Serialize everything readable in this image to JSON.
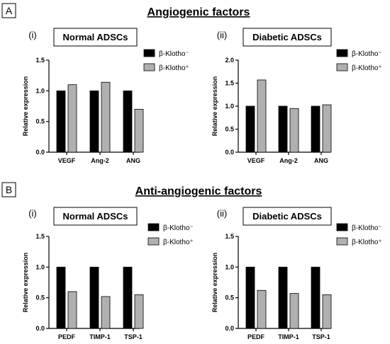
{
  "sections": [
    {
      "letter": "A",
      "title": "Angiogenic factors",
      "charts": [
        {
          "numeral": "(i)",
          "title": "Normal ADSCs",
          "chart_data": {
            "type": "bar",
            "title": "Normal ADSCs",
            "categories": [
              "VEGF",
              "Ang-2",
              "ANG"
            ],
            "ylabel": "Relative expression",
            "ylim": [
              0,
              1.5
            ],
            "yticks": [
              "0.0",
              "0.5",
              "1.0",
              "1.5"
            ],
            "series": [
              {
                "name": "β-Klotho⁻",
                "color": "#000000",
                "values": [
                  1.0,
                  1.0,
                  1.0
                ]
              },
              {
                "name": "β-Klotho⁺",
                "color": "#b0b0b0",
                "values": [
                  1.1,
                  1.14,
                  0.7
                ]
              }
            ],
            "legend": "top-right",
            "grid": false
          }
        },
        {
          "numeral": "(ii)",
          "title": "Diabetic ADSCs",
          "chart_data": {
            "type": "bar",
            "title": "Diabetic ADSCs",
            "categories": [
              "VEGF",
              "Ang-2",
              "ANG"
            ],
            "ylabel": "Relative expression",
            "ylim": [
              0,
              2.0
            ],
            "yticks": [
              "0.0",
              "0.5",
              "1.0",
              "1.5",
              "2.0"
            ],
            "series": [
              {
                "name": "β-Klotho⁻",
                "color": "#000000",
                "values": [
                  1.0,
                  1.0,
                  1.0
                ]
              },
              {
                "name": "β-Klotho⁺",
                "color": "#b0b0b0",
                "values": [
                  1.57,
                  0.95,
                  1.03
                ]
              }
            ],
            "legend": "top-right",
            "grid": false
          }
        }
      ]
    },
    {
      "letter": "B",
      "title": "Anti-angiogenic factors",
      "charts": [
        {
          "numeral": "(i)",
          "title": "Normal ADSCs",
          "chart_data": {
            "type": "bar",
            "title": "Normal ADSCs",
            "categories": [
              "PEDF",
              "TIMP-1",
              "TSP-1"
            ],
            "ylabel": "Relative expression",
            "ylim": [
              0,
              1.5
            ],
            "yticks": [
              "0.0",
              "0.5",
              "1.0",
              "1.5"
            ],
            "series": [
              {
                "name": "β-Klotho⁻",
                "color": "#000000",
                "values": [
                  1.0,
                  1.0,
                  1.0
                ]
              },
              {
                "name": "β-Klotho⁺",
                "color": "#b0b0b0",
                "values": [
                  0.6,
                  0.52,
                  0.55
                ]
              }
            ],
            "legend": "top-right",
            "grid": false
          }
        },
        {
          "numeral": "(ii)",
          "title": "Diabetic ADSCs",
          "chart_data": {
            "type": "bar",
            "title": "Diabetic ADSCs",
            "categories": [
              "PEDF",
              "TIMP-1",
              "TSP-1"
            ],
            "ylabel": "Relative expression",
            "ylim": [
              0,
              1.5
            ],
            "yticks": [
              "0.0",
              "0.5",
              "1.0",
              "1.5"
            ],
            "series": [
              {
                "name": "β-Klotho⁻",
                "color": "#000000",
                "values": [
                  1.0,
                  1.0,
                  1.0
                ]
              },
              {
                "name": "β-Klotho⁺",
                "color": "#b0b0b0",
                "values": [
                  0.62,
                  0.57,
                  0.55
                ]
              }
            ],
            "legend": "top-right",
            "grid": false
          }
        }
      ]
    }
  ]
}
